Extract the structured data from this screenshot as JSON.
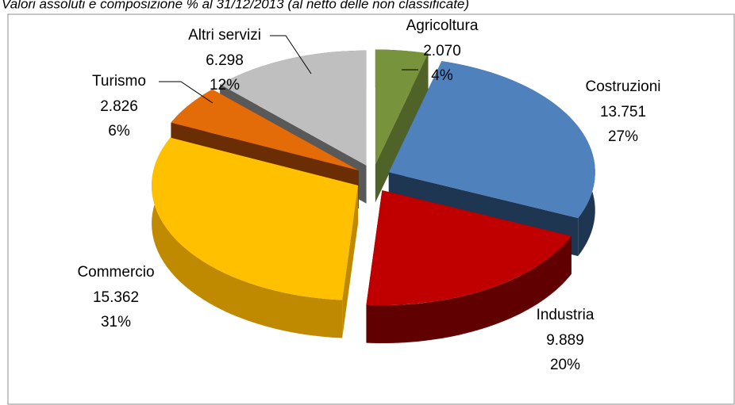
{
  "chart_data": {
    "type": "pie",
    "subtitle": "Valori assoluti e composizione % al 31/12/2013 (al netto delle non classificate)",
    "categories": [
      "Agricoltura",
      "Costruzioni",
      "Industria",
      "Commercio",
      "Turismo",
      "Altri servizi"
    ],
    "values": [
      2070,
      13751,
      9889,
      15362,
      2826,
      6298
    ],
    "value_labels": [
      "2.070",
      "13.751",
      "9.889",
      "15.362",
      "2.826",
      "6.298"
    ],
    "percent": [
      4,
      27,
      20,
      31,
      6,
      12
    ],
    "percent_labels": [
      "4%",
      "27%",
      "20%",
      "31%",
      "6%",
      "12%"
    ],
    "colors": [
      "#77933c",
      "#4f81bd",
      "#c00000",
      "#ffc000",
      "#e36c09",
      "#bfbfbf"
    ],
    "side_colors": [
      "#4f6228",
      "#1f3652",
      "#600000",
      "#c08a00",
      "#6b2e04",
      "#595959"
    ]
  }
}
